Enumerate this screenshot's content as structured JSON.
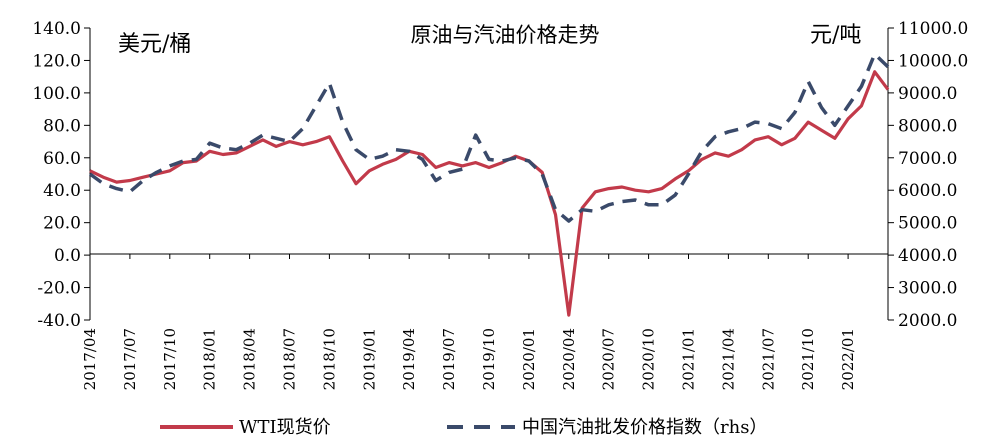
{
  "chart_data": {
    "type": "line",
    "title": "原油与汽油价格走势",
    "left_unit": "美元/桶",
    "right_unit": "元/吨",
    "ylim_left": [
      -40,
      140
    ],
    "ylim_right": [
      2000,
      11000
    ],
    "yticks_left": [
      "140.0",
      "120.0",
      "100.0",
      "80.0",
      "60.0",
      "40.0",
      "20.0",
      "0.0",
      "-20.0",
      "-40.0"
    ],
    "yticks_right": [
      "11000.0",
      "10000.0",
      "9000.0",
      "8000.0",
      "7000.0",
      "6000.0",
      "5000.0",
      "4000.0",
      "3000.0",
      "2000.0"
    ],
    "x_categories": [
      "2017/04",
      "2017/07",
      "2017/10",
      "2018/01",
      "2018/04",
      "2018/07",
      "2018/10",
      "2019/01",
      "2019/04",
      "2019/07",
      "2019/10",
      "2020/01",
      "2020/04",
      "2020/07",
      "2020/10",
      "2021/01",
      "2021/04",
      "2021/07",
      "2021/10",
      "2022/01"
    ],
    "x_range": [
      "2017/04",
      "2022/04"
    ],
    "grid": false,
    "legend_position": "bottom",
    "series": [
      {
        "name": "WTI现货价",
        "axis": "left",
        "color": "#c23a4a",
        "style": "solid",
        "points": [
          [
            "2017/04",
            52
          ],
          [
            "2017/05",
            48
          ],
          [
            "2017/06",
            45
          ],
          [
            "2017/07",
            46
          ],
          [
            "2017/08",
            48
          ],
          [
            "2017/09",
            50
          ],
          [
            "2017/10",
            52
          ],
          [
            "2017/11",
            57
          ],
          [
            "2017/12",
            58
          ],
          [
            "2018/01",
            64
          ],
          [
            "2018/02",
            62
          ],
          [
            "2018/03",
            63
          ],
          [
            "2018/04",
            67
          ],
          [
            "2018/05",
            71
          ],
          [
            "2018/06",
            67
          ],
          [
            "2018/07",
            70
          ],
          [
            "2018/08",
            68
          ],
          [
            "2018/09",
            70
          ],
          [
            "2018/10",
            73
          ],
          [
            "2018/11",
            58
          ],
          [
            "2018/12",
            44
          ],
          [
            "2019/01",
            52
          ],
          [
            "2019/02",
            56
          ],
          [
            "2019/03",
            59
          ],
          [
            "2019/04",
            64
          ],
          [
            "2019/05",
            62
          ],
          [
            "2019/06",
            54
          ],
          [
            "2019/07",
            57
          ],
          [
            "2019/08",
            55
          ],
          [
            "2019/09",
            57
          ],
          [
            "2019/10",
            54
          ],
          [
            "2019/11",
            57
          ],
          [
            "2019/12",
            61
          ],
          [
            "2020/01",
            58
          ],
          [
            "2020/02",
            51
          ],
          [
            "2020/03",
            25
          ],
          [
            "2020/04",
            -37
          ],
          [
            "2020/05",
            29
          ],
          [
            "2020/06",
            39
          ],
          [
            "2020/07",
            41
          ],
          [
            "2020/08",
            42
          ],
          [
            "2020/09",
            40
          ],
          [
            "2020/10",
            39
          ],
          [
            "2020/11",
            41
          ],
          [
            "2020/12",
            47
          ],
          [
            "2021/01",
            52
          ],
          [
            "2021/02",
            59
          ],
          [
            "2021/03",
            63
          ],
          [
            "2021/04",
            61
          ],
          [
            "2021/05",
            65
          ],
          [
            "2021/06",
            71
          ],
          [
            "2021/07",
            73
          ],
          [
            "2021/08",
            68
          ],
          [
            "2021/09",
            72
          ],
          [
            "2021/10",
            82
          ],
          [
            "2021/11",
            77
          ],
          [
            "2021/12",
            72
          ],
          [
            "2022/01",
            84
          ],
          [
            "2022/02",
            92
          ],
          [
            "2022/03",
            113
          ],
          [
            "2022/04",
            102
          ]
        ]
      },
      {
        "name": "中国汽油批发价格指数（rhs）",
        "axis": "right",
        "color": "#3a4a6a",
        "style": "dashed",
        "points": [
          [
            "2017/04",
            6500
          ],
          [
            "2017/05",
            6200
          ],
          [
            "2017/06",
            6050
          ],
          [
            "2017/07",
            5950
          ],
          [
            "2017/08",
            6300
          ],
          [
            "2017/09",
            6550
          ],
          [
            "2017/10",
            6750
          ],
          [
            "2017/11",
            6900
          ],
          [
            "2017/12",
            6950
          ],
          [
            "2018/01",
            7450
          ],
          [
            "2018/02",
            7300
          ],
          [
            "2018/03",
            7250
          ],
          [
            "2018/04",
            7450
          ],
          [
            "2018/05",
            7700
          ],
          [
            "2018/06",
            7600
          ],
          [
            "2018/07",
            7500
          ],
          [
            "2018/08",
            7900
          ],
          [
            "2018/09",
            8600
          ],
          [
            "2018/10",
            9300
          ],
          [
            "2018/11",
            8100
          ],
          [
            "2018/12",
            7250
          ],
          [
            "2019/01",
            6950
          ],
          [
            "2019/02",
            7050
          ],
          [
            "2019/03",
            7250
          ],
          [
            "2019/04",
            7200
          ],
          [
            "2019/05",
            6950
          ],
          [
            "2019/06",
            6300
          ],
          [
            "2019/07",
            6550
          ],
          [
            "2019/08",
            6650
          ],
          [
            "2019/09",
            7700
          ],
          [
            "2019/10",
            6950
          ],
          [
            "2019/11",
            6900
          ],
          [
            "2019/12",
            7000
          ],
          [
            "2020/01",
            6900
          ],
          [
            "2020/02",
            6500
          ],
          [
            "2020/03",
            5400
          ],
          [
            "2020/04",
            5050
          ],
          [
            "2020/05",
            5400
          ],
          [
            "2020/06",
            5350
          ],
          [
            "2020/07",
            5550
          ],
          [
            "2020/08",
            5650
          ],
          [
            "2020/09",
            5700
          ],
          [
            "2020/10",
            5550
          ],
          [
            "2020/11",
            5550
          ],
          [
            "2020/12",
            5850
          ],
          [
            "2021/01",
            6500
          ],
          [
            "2021/02",
            7200
          ],
          [
            "2021/03",
            7650
          ],
          [
            "2021/04",
            7800
          ],
          [
            "2021/05",
            7900
          ],
          [
            "2021/06",
            8100
          ],
          [
            "2021/07",
            8050
          ],
          [
            "2021/08",
            7900
          ],
          [
            "2021/09",
            8400
          ],
          [
            "2021/10",
            9350
          ],
          [
            "2021/11",
            8550
          ],
          [
            "2021/12",
            8000
          ],
          [
            "2022/01",
            8600
          ],
          [
            "2022/02",
            9200
          ],
          [
            "2022/03",
            10200
          ],
          [
            "2022/04",
            9800
          ]
        ]
      }
    ]
  }
}
